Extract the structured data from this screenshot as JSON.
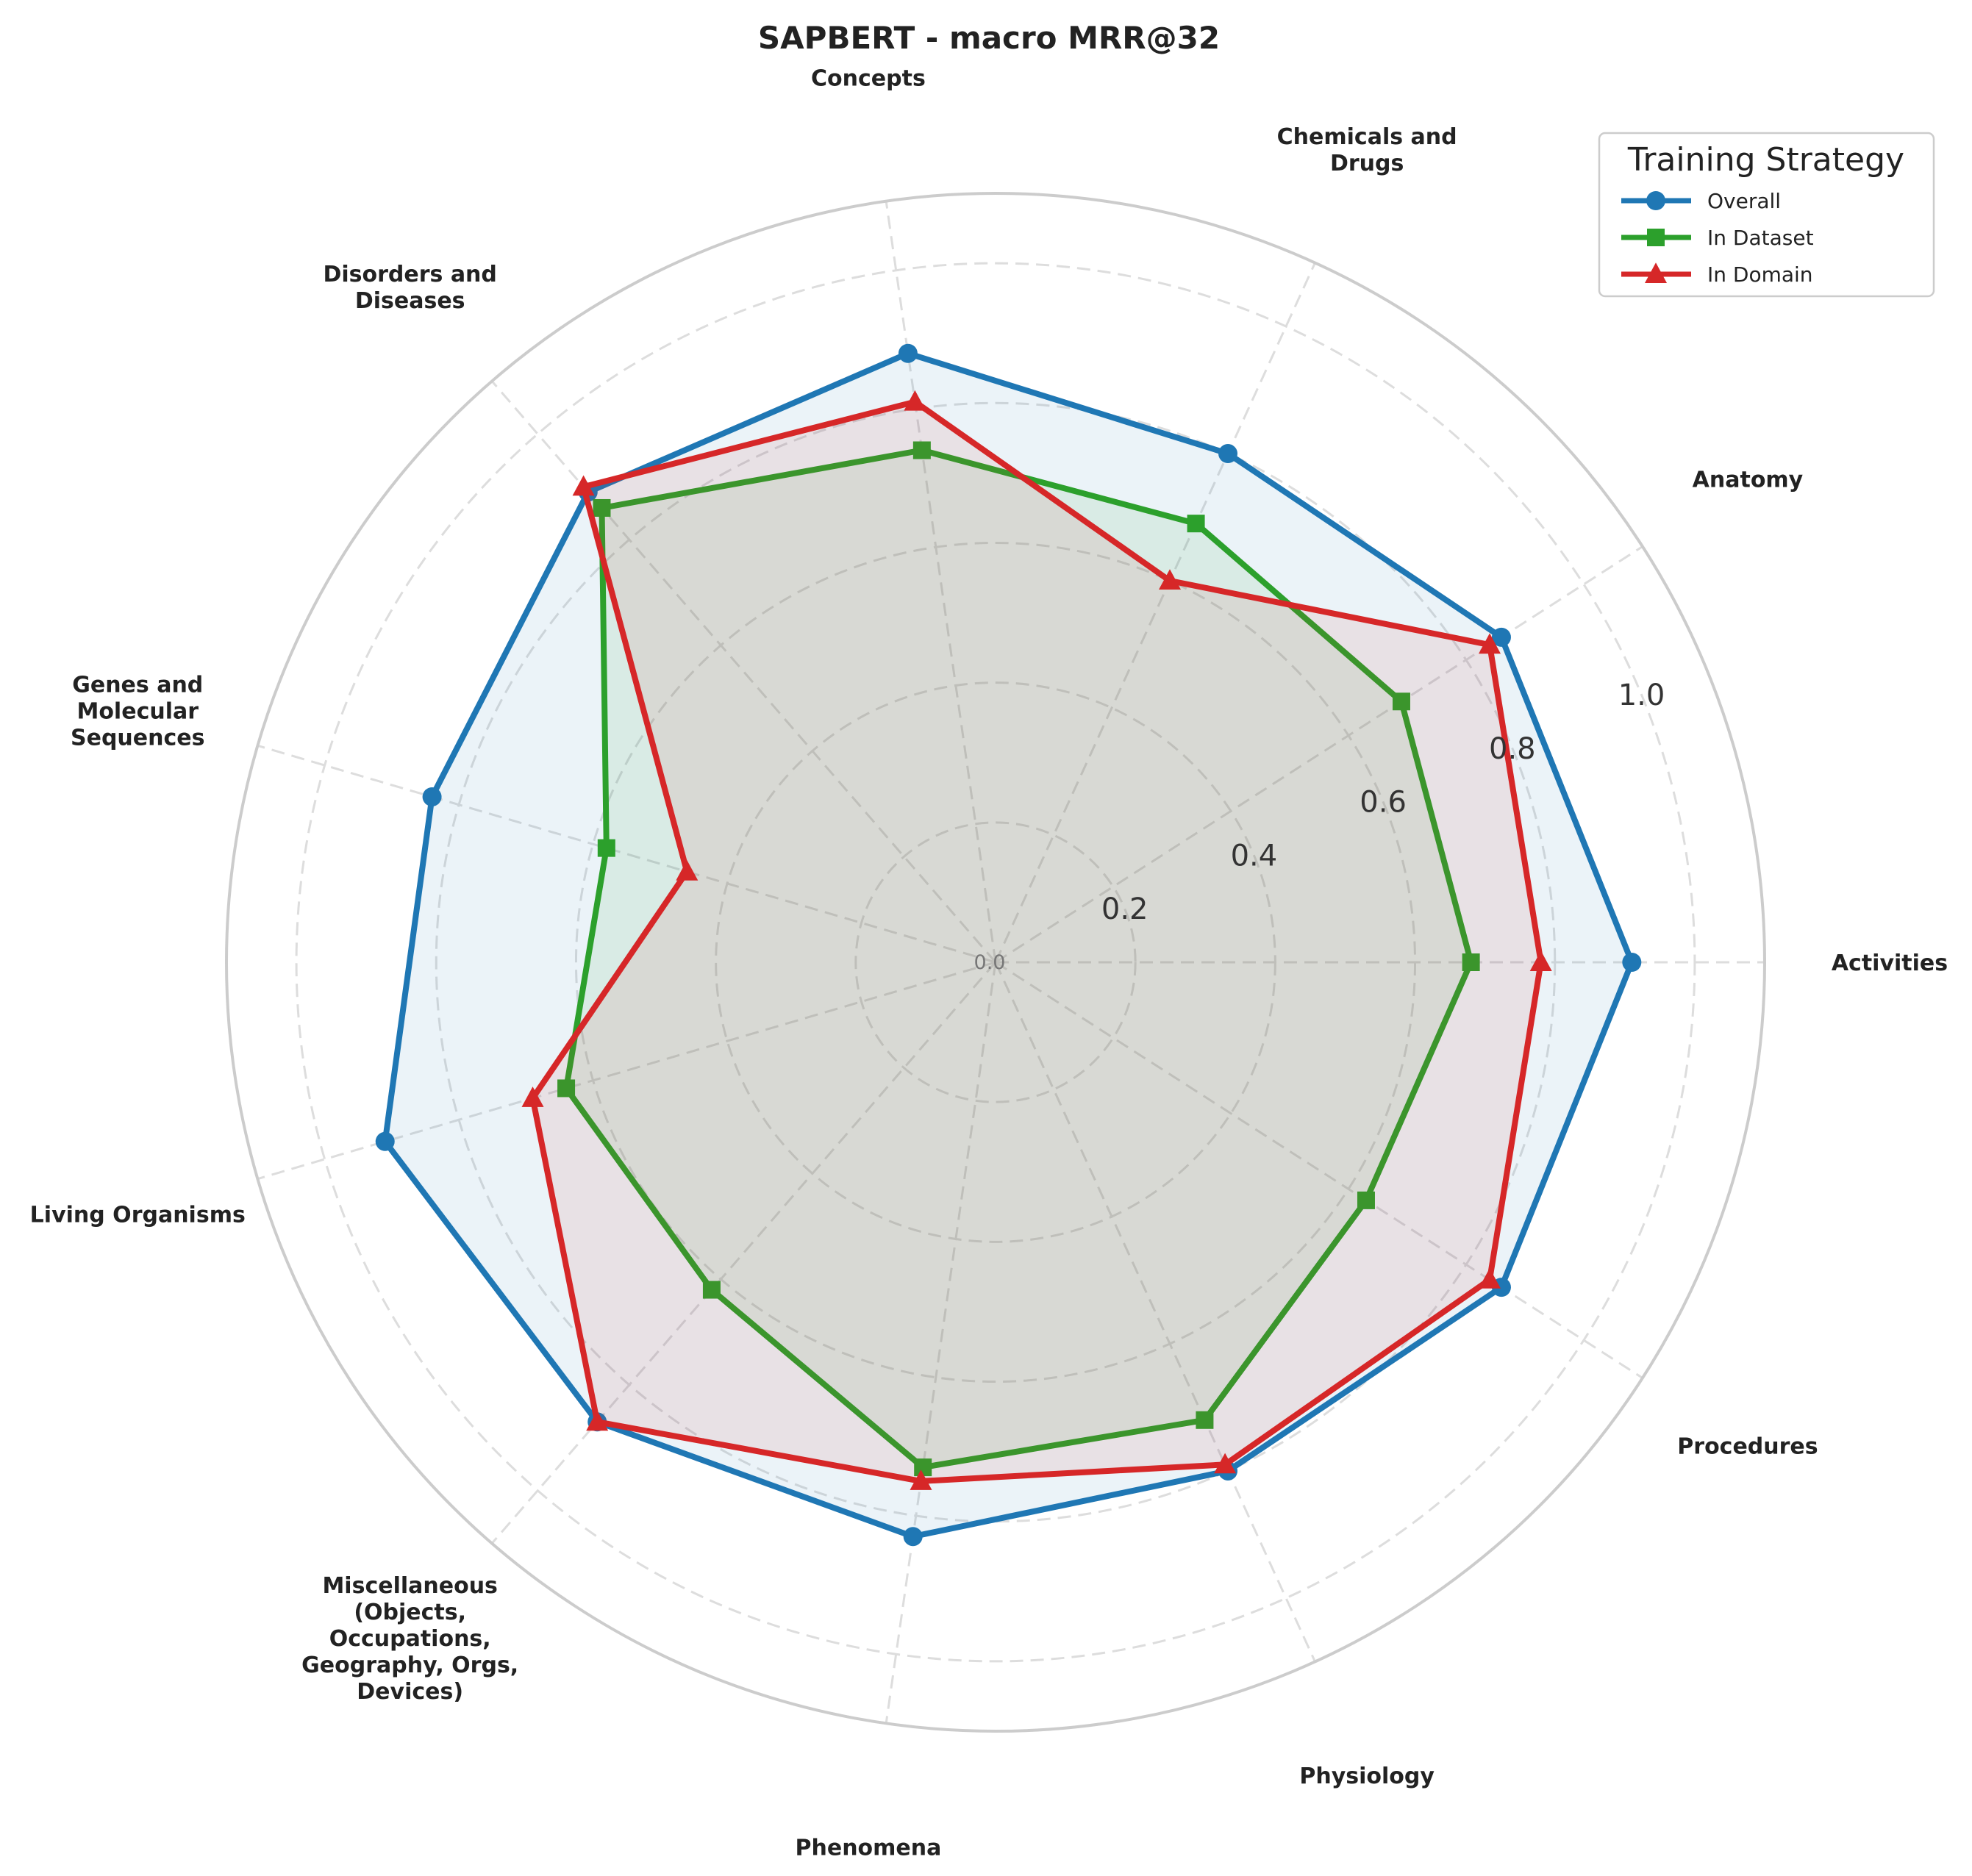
{
  "chart_data": {
    "type": "radar",
    "title": "SAPBERT - macro MRR@32",
    "categories": [
      "Activities",
      "Anatomy",
      "Chemicals and\nDrugs",
      "Concepts",
      "Disorders and\nDiseases",
      "Genes and\nMolecular\nSequences",
      "Living Organisms",
      "Miscellaneous\n(Objects,\nOccupations,\nGeography, Orgs,\nDevices)",
      "Phenomena",
      "Physiology",
      "Procedures"
    ],
    "series": [
      {
        "name": "Overall",
        "color": "#1f77b4",
        "marker": "circle",
        "values": [
          0.91,
          0.86,
          0.8,
          0.88,
          0.89,
          0.84,
          0.91,
          0.87,
          0.83,
          0.8,
          0.86
        ]
      },
      {
        "name": "In Dataset",
        "color": "#2ca02c",
        "marker": "square",
        "values": [
          0.68,
          0.69,
          0.69,
          0.74,
          0.86,
          0.58,
          0.64,
          0.62,
          0.73,
          0.72,
          0.63
        ]
      },
      {
        "name": "In Domain",
        "color": "#d62728",
        "marker": "triangle",
        "values": [
          0.78,
          0.84,
          0.6,
          0.81,
          0.9,
          0.46,
          0.69,
          0.87,
          0.75,
          0.79,
          0.84
        ]
      }
    ],
    "radial_ticks": [
      0.0,
      0.2,
      0.4,
      0.6,
      0.8,
      1.0
    ],
    "radial_tick_labels": [
      "0.0",
      "0.2",
      "0.4",
      "0.6",
      "0.8",
      "1.0"
    ],
    "rlim": [
      0,
      1.1
    ],
    "grid": true,
    "legend_title": "Training Strategy",
    "legend_position": "top-right"
  }
}
